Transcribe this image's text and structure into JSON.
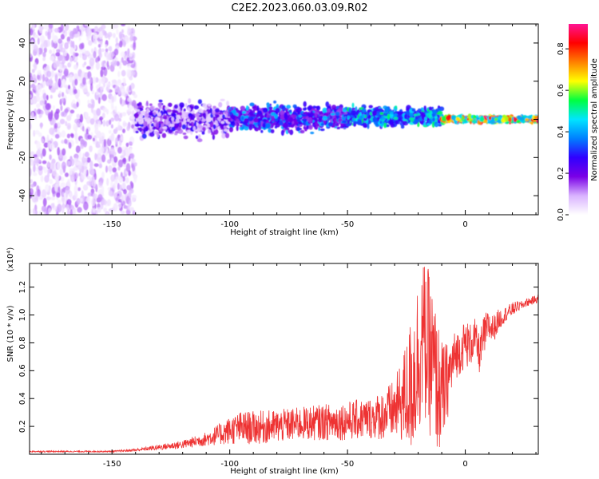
{
  "title": "C2E2.2023.060.03.09.R02",
  "chart_data": [
    {
      "type": "heatmap",
      "xlabel": "Height of straight line (km)",
      "ylabel": "Frequency (Hz)",
      "xlim": [
        -185,
        31
      ],
      "ylim": [
        -50,
        50
      ],
      "xticks": [
        -150,
        -100,
        -50,
        0
      ],
      "xtick_labels": [
        "-150",
        "-100",
        "-50",
        "0"
      ],
      "yticks": [
        -40,
        -20,
        0,
        20,
        40
      ],
      "ytick_labels": [
        "-40",
        "-20",
        "0",
        "20",
        "40"
      ],
      "colorbar": {
        "label": "Normalized spectral amplitude",
        "range": [
          0.0,
          0.92
        ],
        "ticks": [
          0.0,
          0.2,
          0.4,
          0.6,
          0.8
        ],
        "tick_labels": [
          "0.0",
          "0.2",
          "0.4",
          "0.6",
          "0.8"
        ],
        "colormap": [
          "#ffffff",
          "#d9b3ff",
          "#7a00e6",
          "#3000ff",
          "#0080ff",
          "#00e5ff",
          "#00ff40",
          "#ffff00",
          "#ff8000",
          "#ff0000",
          "#ff1493"
        ]
      },
      "regions": [
        {
          "x": [
            -185,
            -140
          ],
          "freq": [
            -50,
            50
          ],
          "amplitude": [
            0.02,
            0.15
          ],
          "pattern": "broadband noise"
        },
        {
          "x": [
            -140,
            -100
          ],
          "freq": [
            -12,
            12
          ],
          "amplitude": [
            0.05,
            0.3
          ],
          "pattern": "band centered at 0 Hz"
        },
        {
          "x": [
            -100,
            -50
          ],
          "freq": [
            -8,
            10
          ],
          "amplitude": [
            0.15,
            0.45
          ],
          "pattern": "band centered at 0 Hz"
        },
        {
          "x": [
            -50,
            -10
          ],
          "freq": [
            -5,
            8
          ],
          "amplitude": [
            0.25,
            0.55
          ],
          "pattern": "band centered at 0 Hz"
        },
        {
          "x": [
            -10,
            31
          ],
          "freq": [
            -2,
            2
          ],
          "amplitude": [
            0.4,
            0.92
          ],
          "pattern": "narrow line at 0 Hz"
        }
      ]
    },
    {
      "type": "line",
      "xlabel": "Height of straight line (km)",
      "ylabel": "SNR (10 * v/v)",
      "scale_label": "(x10⁴)",
      "xlim": [
        -185,
        31
      ],
      "ylim": [
        0,
        1.37
      ],
      "xticks": [
        -150,
        -100,
        -50,
        0
      ],
      "xtick_labels": [
        "-150",
        "-100",
        "-50",
        "0"
      ],
      "yticks": [
        0.2,
        0.4,
        0.6,
        0.8,
        1.0,
        1.2
      ],
      "ytick_labels": [
        "0.2",
        "0.4",
        "0.6",
        "0.8",
        "1.0",
        "1.2"
      ],
      "color": "#ee3333",
      "series": [
        {
          "x": [
            -185,
            -170,
            -150,
            -140,
            -130,
            -120,
            -110,
            -100,
            -95,
            -90,
            -80,
            -70,
            -60,
            -50,
            -40,
            -35,
            -30,
            -27,
            -24,
            -22,
            -20,
            -18,
            -16,
            -14,
            -12,
            -10,
            -8,
            -6,
            -4,
            -2,
            0,
            2,
            4,
            6,
            8,
            10,
            12,
            14,
            16,
            18,
            20,
            22,
            24,
            26,
            28,
            31
          ],
          "y": [
            0.02,
            0.02,
            0.02,
            0.03,
            0.05,
            0.07,
            0.11,
            0.17,
            0.19,
            0.19,
            0.2,
            0.22,
            0.23,
            0.24,
            0.26,
            0.28,
            0.32,
            0.38,
            0.45,
            0.55,
            0.7,
            0.85,
            0.75,
            0.65,
            0.5,
            0.42,
            0.5,
            0.62,
            0.72,
            0.74,
            0.8,
            0.78,
            0.84,
            0.72,
            0.85,
            0.92,
            0.9,
            0.96,
            0.99,
            1.02,
            1.04,
            1.06,
            1.07,
            1.09,
            1.1,
            1.12
          ],
          "spread": [
            0.005,
            0.005,
            0.005,
            0.01,
            0.02,
            0.03,
            0.05,
            0.1,
            0.12,
            0.12,
            0.12,
            0.12,
            0.13,
            0.14,
            0.15,
            0.18,
            0.22,
            0.3,
            0.45,
            0.55,
            0.6,
            0.55,
            0.6,
            0.55,
            0.5,
            0.4,
            0.3,
            0.22,
            0.18,
            0.16,
            0.18,
            0.16,
            0.14,
            0.14,
            0.16,
            0.12,
            0.1,
            0.08,
            0.06,
            0.05,
            0.05,
            0.04,
            0.03,
            0.03,
            0.03,
            0.03
          ]
        }
      ]
    }
  ]
}
